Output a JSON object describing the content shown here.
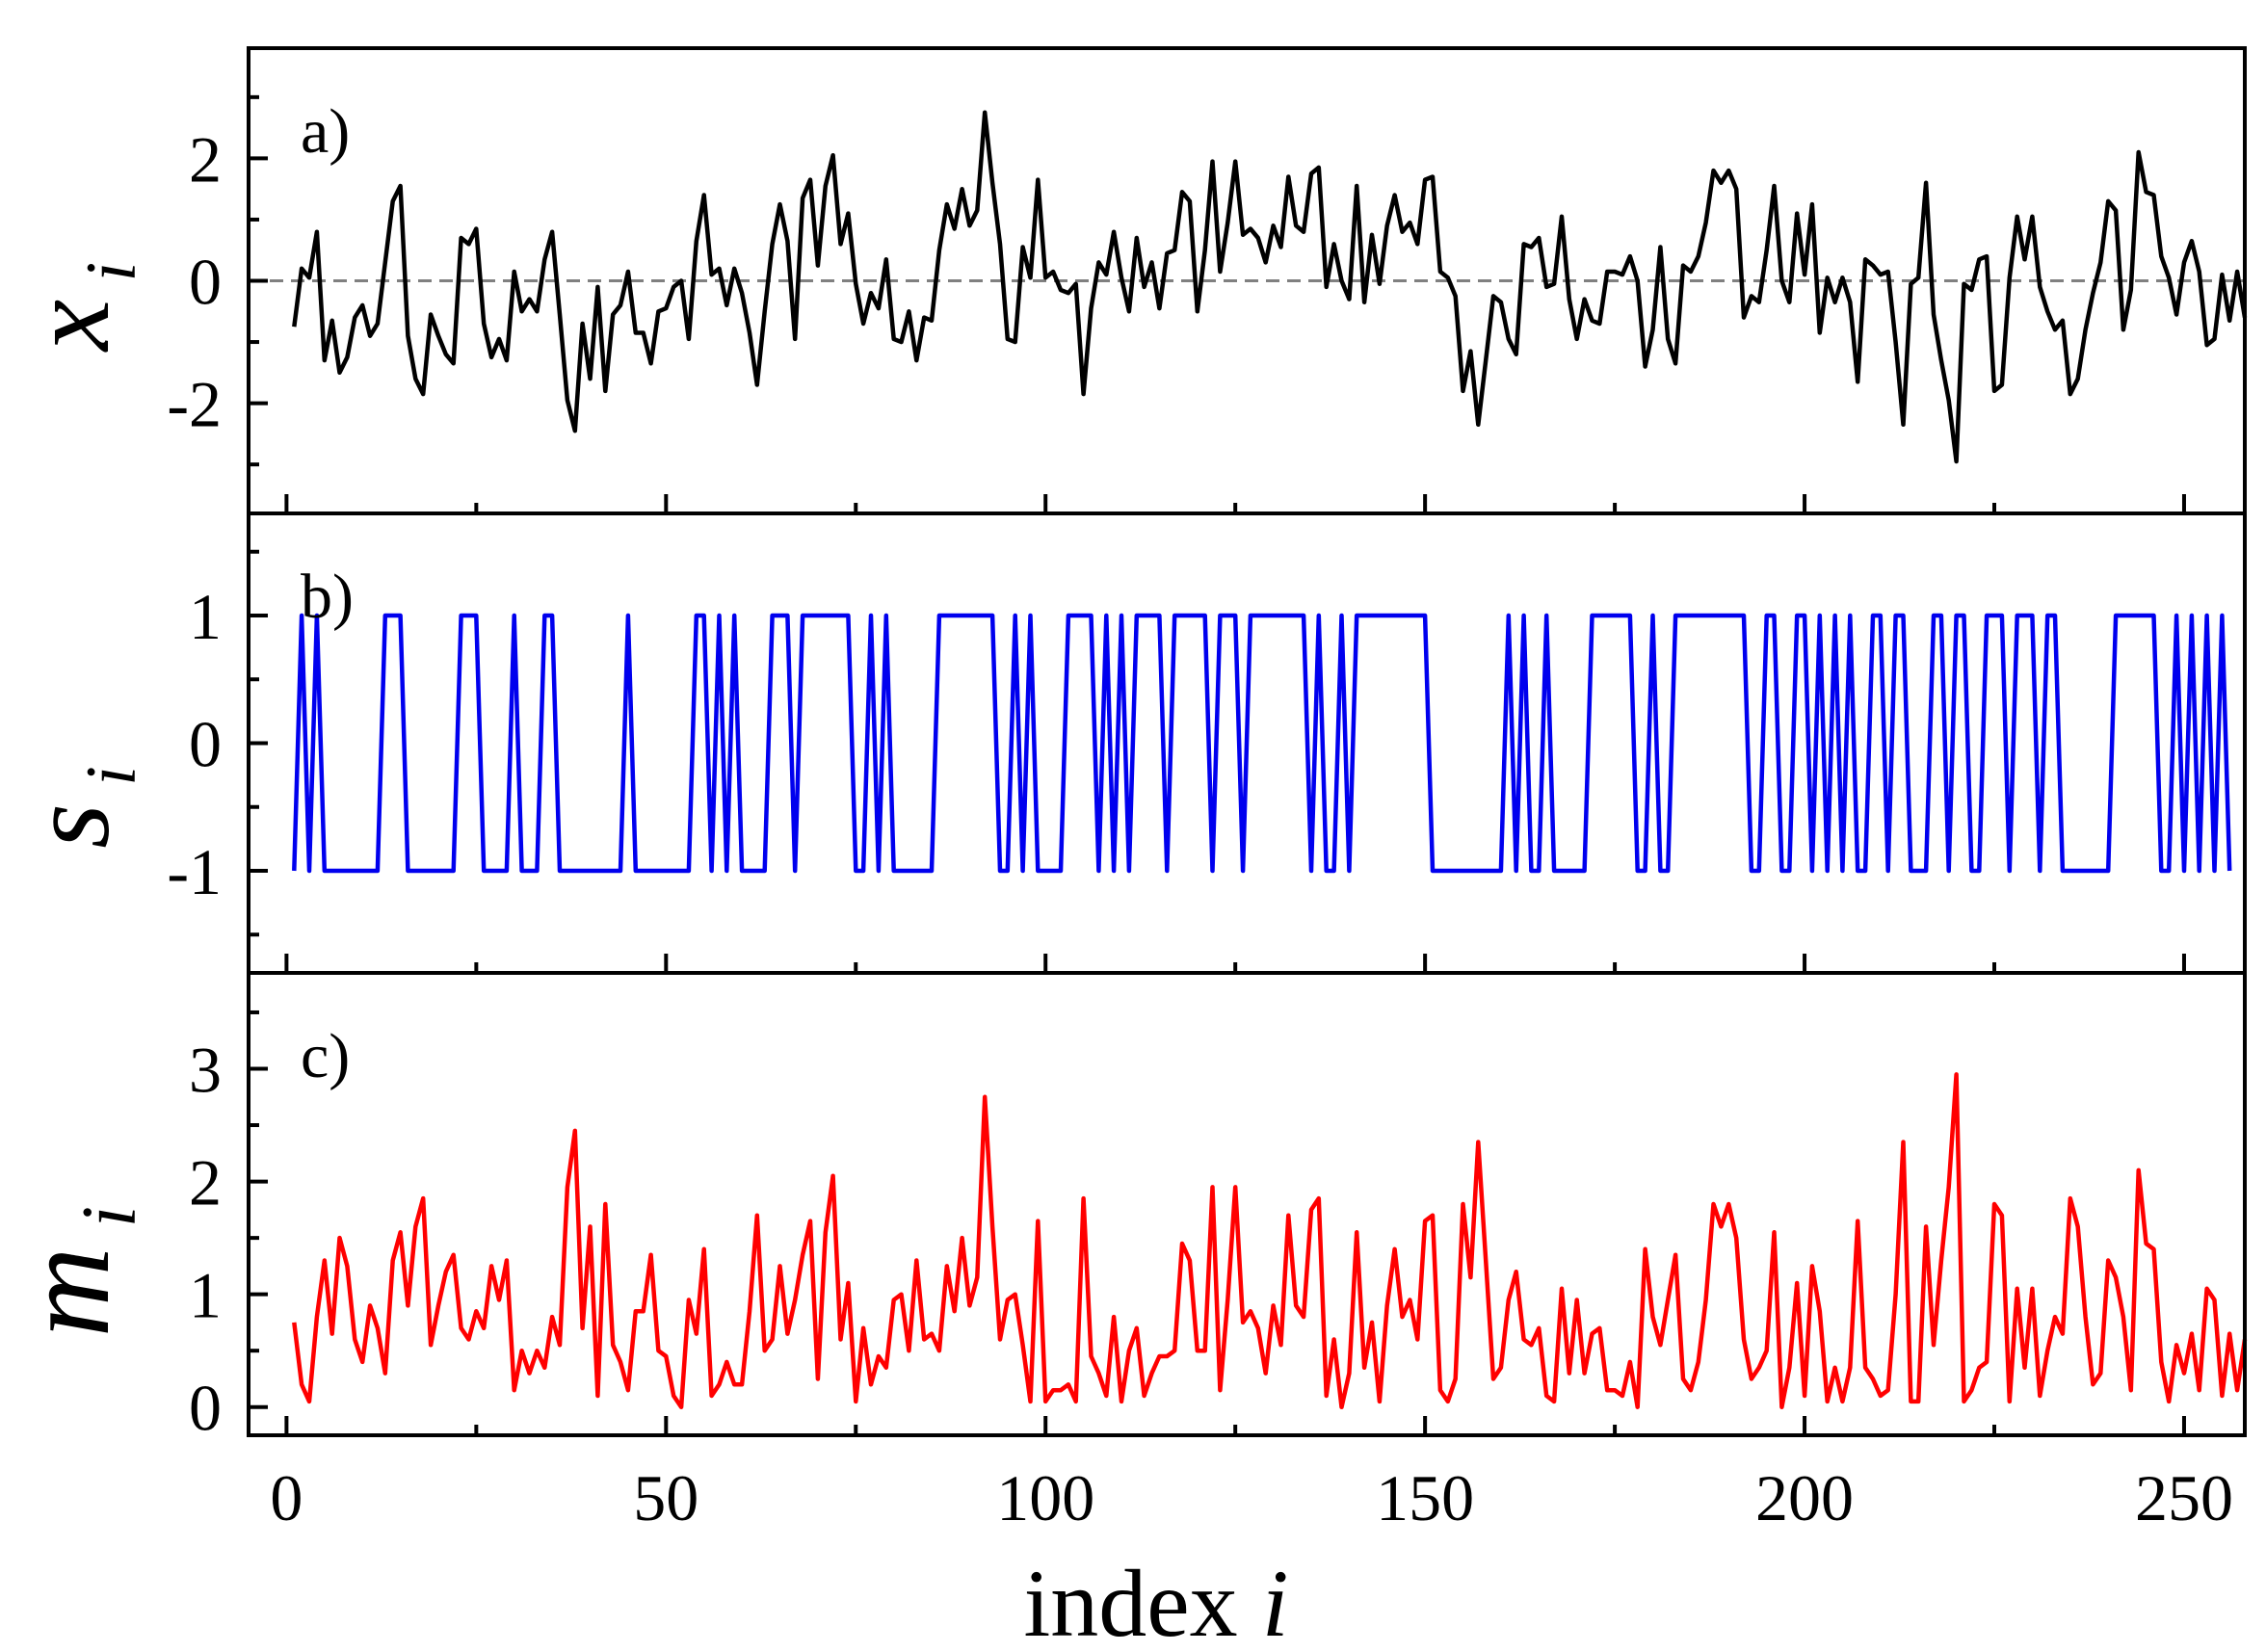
{
  "chart_data": [
    {
      "type": "line",
      "panel": "a)",
      "ylabel": "x",
      "ylabel_sub": "i",
      "ylim": [
        -3.8,
        3.8
      ],
      "yticks": [
        -2,
        0,
        2
      ],
      "ytick_labels": [
        "-2",
        "0",
        "2"
      ],
      "reference_line": 0,
      "color": "#000000",
      "x_start": 1,
      "values": [
        -0.75,
        0.2,
        0.05,
        0.8,
        -1.3,
        -0.65,
        -1.5,
        -1.25,
        -0.6,
        -0.4,
        -0.9,
        -0.7,
        0.3,
        1.3,
        1.55,
        -0.9,
        -1.6,
        -1.85,
        -0.55,
        -0.9,
        -1.2,
        -1.35,
        0.7,
        0.6,
        0.85,
        -0.7,
        -1.25,
        -0.95,
        -1.3,
        0.15,
        -0.5,
        -0.3,
        -0.5,
        0.35,
        0.8,
        -0.55,
        -1.95,
        -2.45,
        -0.7,
        -1.6,
        -0.1,
        -1.8,
        -0.55,
        -0.4,
        0.15,
        -0.85,
        -0.85,
        -1.35,
        -0.5,
        -0.45,
        -0.1,
        0.0,
        -0.95,
        0.65,
        1.4,
        0.1,
        0.2,
        -0.4,
        0.2,
        -0.2,
        -0.85,
        -1.7,
        -0.5,
        0.6,
        1.25,
        0.65,
        -0.95,
        1.35,
        1.65,
        0.25,
        1.55,
        2.05,
        0.6,
        1.1,
        -0.05,
        -0.7,
        -0.2,
        -0.45,
        0.35,
        -0.95,
        -1.0,
        -0.5,
        -1.3,
        -0.6,
        -0.65,
        0.5,
        1.25,
        0.85,
        1.5,
        0.9,
        1.15,
        2.75,
        1.6,
        0.6,
        -0.95,
        -1.0,
        0.55,
        0.05,
        1.65,
        0.05,
        0.15,
        -0.15,
        -0.2,
        -0.05,
        -1.85,
        -0.45,
        0.3,
        0.1,
        0.8,
        0.05,
        -0.5,
        0.7,
        -0.1,
        0.3,
        -0.45,
        0.45,
        0.5,
        1.45,
        1.3,
        -0.5,
        0.5,
        1.95,
        0.15,
        0.95,
        1.95,
        0.75,
        0.85,
        0.7,
        0.3,
        0.9,
        0.55,
        1.7,
        0.9,
        0.8,
        1.75,
        1.85,
        -0.1,
        0.6,
        0.0,
        -0.3,
        1.55,
        -0.35,
        0.75,
        -0.05,
        0.9,
        1.4,
        0.8,
        0.95,
        0.6,
        1.65,
        1.7,
        0.15,
        0.05,
        -0.25,
        -1.8,
        -1.15,
        -2.35,
        -1.3,
        -0.25,
        -0.35,
        -0.95,
        -1.2,
        0.6,
        0.55,
        0.7,
        -0.1,
        -0.05,
        1.05,
        -0.3,
        -0.95,
        -0.3,
        -0.65,
        -0.7,
        0.15,
        0.15,
        0.1,
        0.4,
        0.0,
        -1.4,
        -0.8,
        0.55,
        -0.95,
        -1.35,
        0.25,
        0.15,
        0.4,
        0.95,
        1.8,
        1.6,
        1.8,
        1.5,
        -0.6,
        -0.25,
        -0.35,
        0.5,
        1.55,
        0.0,
        -0.35,
        1.1,
        0.1,
        1.25,
        -0.85,
        0.05,
        -0.35,
        0.05,
        -0.35,
        -1.65,
        0.35,
        0.25,
        0.1,
        0.15,
        -1.0,
        -2.35,
        -0.05,
        0.05,
        1.6,
        -0.55,
        -1.3,
        -1.95,
        -2.95,
        -0.05,
        -0.15,
        0.35,
        0.4,
        -1.8,
        -1.7,
        0.05,
        1.05,
        0.35,
        1.05,
        -0.1,
        -0.5,
        -0.8,
        -0.65,
        -1.85,
        -1.6,
        -0.8,
        -0.2,
        0.3,
        1.3,
        1.15,
        -0.8,
        -0.15,
        2.1,
        1.45,
        1.4,
        0.4,
        0.05,
        -0.55,
        0.3,
        0.65,
        0.15,
        -1.05,
        -0.95,
        0.1,
        -0.65,
        0.15,
        -0.6
      ]
    },
    {
      "type": "line",
      "panel": "b)",
      "ylabel": "s",
      "ylabel_sub": "i",
      "ylim": [
        -1.8,
        1.8
      ],
      "yticks": [
        -1,
        0,
        1
      ],
      "ytick_labels": [
        "-1",
        "0",
        "1"
      ],
      "color": "#0000ee",
      "x_start": 1,
      "values": [
        -1,
        1,
        -1,
        1,
        -1,
        -1,
        -1,
        -1,
        -1,
        -1,
        -1,
        -1,
        1,
        1,
        1,
        -1,
        -1,
        -1,
        -1,
        -1,
        -1,
        -1,
        1,
        1,
        1,
        -1,
        -1,
        -1,
        -1,
        1,
        -1,
        -1,
        -1,
        1,
        1,
        -1,
        -1,
        -1,
        -1,
        -1,
        -1,
        -1,
        -1,
        -1,
        1,
        -1,
        -1,
        -1,
        -1,
        -1,
        -1,
        -1,
        -1,
        1,
        1,
        -1,
        1,
        -1,
        1,
        -1,
        -1,
        -1,
        -1,
        1,
        1,
        1,
        -1,
        1,
        1,
        1,
        1,
        1,
        1,
        1,
        -1,
        -1,
        1,
        -1,
        1,
        -1,
        -1,
        -1,
        -1,
        -1,
        -1,
        1,
        1,
        1,
        1,
        1,
        1,
        1,
        1,
        -1,
        -1,
        1,
        -1,
        1,
        -1,
        -1,
        -1,
        -1,
        1,
        1,
        1,
        1,
        -1,
        1,
        -1,
        1,
        -1,
        1,
        1,
        1,
        1,
        -1,
        1,
        1,
        1,
        1,
        1,
        -1,
        1,
        1,
        1,
        -1,
        1,
        1,
        1,
        1,
        1,
        1,
        1,
        1,
        -1,
        1,
        -1,
        -1,
        1,
        -1,
        1,
        1,
        1,
        1,
        1,
        1,
        1,
        1,
        1,
        1,
        -1,
        -1,
        -1,
        -1,
        -1,
        -1,
        -1,
        -1,
        -1,
        -1,
        1,
        -1,
        1,
        -1,
        -1,
        1,
        -1,
        -1,
        -1,
        -1,
        -1,
        1,
        1,
        1,
        1,
        1,
        1,
        -1,
        -1,
        1,
        -1,
        -1,
        1,
        1,
        1,
        1,
        1,
        1,
        1,
        1,
        1,
        1,
        -1,
        -1,
        1,
        1,
        -1,
        -1,
        1,
        1,
        -1,
        1,
        -1,
        1,
        -1,
        1,
        -1,
        -1,
        1,
        1,
        -1,
        1,
        1,
        -1,
        -1,
        -1,
        1,
        1,
        -1,
        1,
        1,
        -1,
        -1,
        1,
        1,
        1,
        -1,
        1,
        1,
        1,
        -1,
        1,
        1,
        -1,
        -1,
        -1,
        -1,
        -1,
        -1,
        -1,
        1,
        1,
        1,
        1,
        1,
        1,
        -1,
        -1,
        1,
        -1,
        1,
        -1,
        1,
        -1,
        1,
        -1
      ]
    },
    {
      "type": "line",
      "panel": "c)",
      "ylabel": "m",
      "ylabel_sub": "i",
      "ylim": [
        -0.25,
        3.85
      ],
      "yticks": [
        0,
        1,
        2,
        3
      ],
      "ytick_labels": [
        "0",
        "1",
        "2",
        "3"
      ],
      "color": "#ff0000",
      "x_start": 1,
      "values": [
        0.75,
        0.2,
        0.05,
        0.8,
        1.3,
        0.65,
        1.5,
        1.25,
        0.6,
        0.4,
        0.9,
        0.7,
        0.3,
        1.3,
        1.55,
        0.9,
        1.6,
        1.85,
        0.55,
        0.9,
        1.2,
        1.35,
        0.7,
        0.6,
        0.85,
        0.7,
        1.25,
        0.95,
        1.3,
        0.15,
        0.5,
        0.3,
        0.5,
        0.35,
        0.8,
        0.55,
        1.95,
        2.45,
        0.7,
        1.6,
        0.1,
        1.8,
        0.55,
        0.4,
        0.15,
        0.85,
        0.85,
        1.35,
        0.5,
        0.45,
        0.1,
        0.0,
        0.95,
        0.65,
        1.4,
        0.1,
        0.2,
        0.4,
        0.2,
        0.2,
        0.85,
        1.7,
        0.5,
        0.6,
        1.25,
        0.65,
        0.95,
        1.35,
        1.65,
        0.25,
        1.55,
        2.05,
        0.6,
        1.1,
        0.05,
        0.7,
        0.2,
        0.45,
        0.35,
        0.95,
        1.0,
        0.5,
        1.3,
        0.6,
        0.65,
        0.5,
        1.25,
        0.85,
        1.5,
        0.9,
        1.15,
        2.75,
        1.6,
        0.6,
        0.95,
        1.0,
        0.55,
        0.05,
        1.65,
        0.05,
        0.15,
        0.15,
        0.2,
        0.05,
        1.85,
        0.45,
        0.3,
        0.1,
        0.8,
        0.05,
        0.5,
        0.7,
        0.1,
        0.3,
        0.45,
        0.45,
        0.5,
        1.45,
        1.3,
        0.5,
        0.5,
        1.95,
        0.15,
        0.95,
        1.95,
        0.75,
        0.85,
        0.7,
        0.3,
        0.9,
        0.55,
        1.7,
        0.9,
        0.8,
        1.75,
        1.85,
        0.1,
        0.6,
        0.0,
        0.3,
        1.55,
        0.35,
        0.75,
        0.05,
        0.9,
        1.4,
        0.8,
        0.95,
        0.6,
        1.65,
        1.7,
        0.15,
        0.05,
        0.25,
        1.8,
        1.15,
        2.35,
        1.3,
        0.25,
        0.35,
        0.95,
        1.2,
        0.6,
        0.55,
        0.7,
        0.1,
        0.05,
        1.05,
        0.3,
        0.95,
        0.3,
        0.65,
        0.7,
        0.15,
        0.15,
        0.1,
        0.4,
        0.0,
        1.4,
        0.8,
        0.55,
        0.95,
        1.35,
        0.25,
        0.15,
        0.4,
        0.95,
        1.8,
        1.6,
        1.8,
        1.5,
        0.6,
        0.25,
        0.35,
        0.5,
        1.55,
        0.0,
        0.35,
        1.1,
        0.1,
        1.25,
        0.85,
        0.05,
        0.35,
        0.05,
        0.35,
        1.65,
        0.35,
        0.25,
        0.1,
        0.15,
        1.0,
        2.35,
        0.05,
        0.05,
        1.6,
        0.55,
        1.3,
        1.95,
        2.95,
        0.05,
        0.15,
        0.35,
        0.4,
        1.8,
        1.7,
        0.05,
        1.05,
        0.35,
        1.05,
        0.1,
        0.5,
        0.8,
        0.65,
        1.85,
        1.6,
        0.8,
        0.2,
        0.3,
        1.3,
        1.15,
        0.8,
        0.15,
        2.1,
        1.45,
        1.4,
        0.4,
        0.05,
        0.55,
        0.3,
        0.65,
        0.15,
        1.05,
        0.95,
        0.1,
        0.65,
        0.15,
        0.6
      ]
    }
  ],
  "x_axis": {
    "xlim": [
      -5,
      258
    ],
    "xticks": [
      0,
      50,
      100,
      150,
      200,
      250
    ],
    "xtick_labels": [
      "0",
      "50",
      "100",
      "150",
      "200",
      "250"
    ],
    "xlabel_text": "index ",
    "xlabel_var": "i"
  }
}
